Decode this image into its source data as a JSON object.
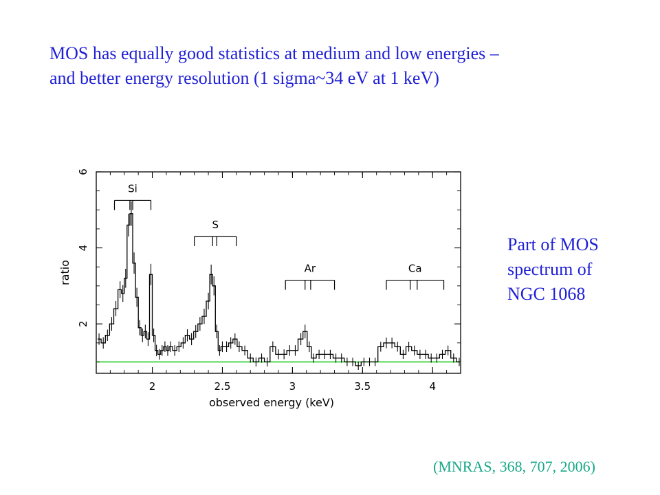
{
  "headline": {
    "line1": "MOS has equally good statistics at medium and low energies –",
    "line2": "and better energy resolution (1 sigma~34  eV at 1 keV)"
  },
  "side_caption": {
    "line1": "Part of MOS",
    "line2": "spectrum of",
    "line3": "NGC 1068"
  },
  "citation": "(MNRAS, 368, 707, 2006)",
  "colors": {
    "text_blue": "#1f1fd6",
    "citation_teal": "#18a888",
    "model_line": "#22cc22",
    "axis": "#000000"
  },
  "chart_data": {
    "type": "line",
    "xlabel": "observed energy (keV)",
    "ylabel": "ratio",
    "xlim": [
      1.6,
      4.2
    ],
    "ylim": [
      0.7,
      6
    ],
    "x_ticks": [
      {
        "value": 2,
        "label": "2"
      },
      {
        "value": 2.5,
        "label": "2.5"
      },
      {
        "value": 3,
        "label": "3"
      },
      {
        "value": 3.5,
        "label": "3.5"
      },
      {
        "value": 4,
        "label": "4"
      }
    ],
    "y_ticks": [
      {
        "value": 2,
        "label": "2"
      },
      {
        "value": 4,
        "label": "4"
      },
      {
        "value": 6,
        "label": "6"
      }
    ],
    "model_level": 1.0,
    "series": [
      {
        "style": "step-with-errors",
        "x": [
          1.62,
          1.65,
          1.68,
          1.71,
          1.74,
          1.77,
          1.79,
          1.81,
          1.83,
          1.85,
          1.87,
          1.89,
          1.91,
          1.93,
          1.95,
          1.97,
          1.99,
          2.01,
          2.03,
          2.05,
          2.07,
          2.09,
          2.11,
          2.13,
          2.16,
          2.19,
          2.22,
          2.25,
          2.28,
          2.31,
          2.34,
          2.37,
          2.4,
          2.42,
          2.44,
          2.46,
          2.48,
          2.5,
          2.53,
          2.56,
          2.59,
          2.62,
          2.66,
          2.7,
          2.74,
          2.78,
          2.82,
          2.86,
          2.9,
          2.94,
          2.98,
          3.02,
          3.06,
          3.09,
          3.12,
          3.15,
          3.19,
          3.23,
          3.27,
          3.31,
          3.35,
          3.39,
          3.43,
          3.47,
          3.51,
          3.55,
          3.59,
          3.63,
          3.67,
          3.71,
          3.75,
          3.79,
          3.83,
          3.87,
          3.91,
          3.95,
          3.99,
          4.03,
          4.07,
          4.11,
          4.15,
          4.19
        ],
        "y": [
          1.6,
          1.5,
          1.7,
          2.0,
          2.4,
          2.9,
          2.8,
          3.2,
          4.6,
          4.9,
          3.6,
          2.7,
          1.9,
          1.7,
          1.8,
          1.6,
          3.3,
          1.7,
          1.3,
          1.2,
          1.3,
          1.4,
          1.3,
          1.4,
          1.3,
          1.4,
          1.5,
          1.7,
          1.6,
          1.8,
          2.0,
          2.2,
          2.6,
          3.3,
          3.0,
          1.8,
          1.3,
          1.4,
          1.4,
          1.5,
          1.6,
          1.4,
          1.3,
          1.1,
          1.0,
          1.1,
          1.0,
          1.4,
          1.2,
          1.2,
          1.3,
          1.3,
          1.6,
          1.8,
          1.4,
          1.1,
          1.2,
          1.2,
          1.2,
          1.1,
          1.1,
          1.0,
          1.0,
          0.9,
          1.0,
          1.0,
          1.0,
          1.4,
          1.5,
          1.5,
          1.4,
          1.2,
          1.4,
          1.3,
          1.2,
          1.2,
          1.1,
          1.1,
          1.2,
          1.3,
          1.1,
          1.0
        ],
        "yerr": [
          0.15,
          0.15,
          0.15,
          0.18,
          0.2,
          0.22,
          0.22,
          0.25,
          0.3,
          0.32,
          0.28,
          0.25,
          0.2,
          0.18,
          0.18,
          0.18,
          0.28,
          0.18,
          0.15,
          0.14,
          0.14,
          0.14,
          0.14,
          0.14,
          0.14,
          0.14,
          0.15,
          0.16,
          0.16,
          0.17,
          0.18,
          0.2,
          0.22,
          0.26,
          0.25,
          0.18,
          0.14,
          0.14,
          0.14,
          0.15,
          0.15,
          0.14,
          0.13,
          0.12,
          0.12,
          0.12,
          0.12,
          0.14,
          0.13,
          0.13,
          0.14,
          0.14,
          0.16,
          0.18,
          0.14,
          0.12,
          0.12,
          0.12,
          0.12,
          0.12,
          0.12,
          0.11,
          0.11,
          0.11,
          0.11,
          0.11,
          0.11,
          0.13,
          0.14,
          0.14,
          0.13,
          0.12,
          0.13,
          0.13,
          0.12,
          0.12,
          0.12,
          0.12,
          0.12,
          0.13,
          0.12,
          0.11
        ]
      }
    ],
    "line_markers": [
      {
        "label": "Si",
        "x_start": 1.73,
        "x_end": 1.99,
        "y": 5.25,
        "lines": [
          1.84,
          1.86
        ]
      },
      {
        "label": "S",
        "x_start": 2.3,
        "x_end": 2.6,
        "y": 4.3,
        "lines": [
          2.43,
          2.46
        ]
      },
      {
        "label": "Ar",
        "x_start": 2.95,
        "x_end": 3.3,
        "y": 3.15,
        "lines": [
          3.09,
          3.13
        ]
      },
      {
        "label": "Ca",
        "x_start": 3.67,
        "x_end": 4.08,
        "y": 3.15,
        "lines": [
          3.84,
          3.89
        ]
      }
    ]
  }
}
